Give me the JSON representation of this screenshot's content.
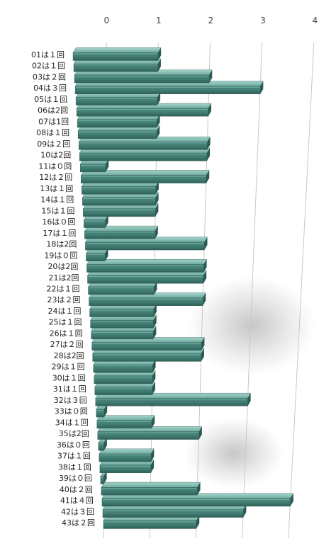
{
  "chart_data": {
    "type": "bar",
    "orientation": "horizontal",
    "style": "3d-perspective",
    "title": "",
    "xlabel": "",
    "ylabel": "",
    "xlim": [
      0,
      4
    ],
    "x_ticks": [
      "0",
      "1",
      "2",
      "3",
      "4"
    ],
    "grid": true,
    "legend": "none",
    "categories": [
      "01は１回",
      "02は１回",
      "03は２回",
      "04は３回",
      "05は１回",
      "06は2回",
      "07は1回",
      "08は１回",
      "09は２回",
      "10は2回",
      "11は０回",
      "12は２回",
      "13は１回",
      "14は１回",
      "15は１回",
      "16は０回",
      "17は１回",
      "18は2回",
      "19は０回",
      "20は2回",
      "21は2回",
      "22は１回",
      "23は２回",
      "24は１回",
      "25は１回",
      "26は１回",
      "27は２回",
      "28は2回",
      "29は１回",
      "30は１回",
      "31は１回",
      "32は３回",
      "33は０回",
      "34は１回",
      "35は2回",
      "36は０回",
      "37は１回",
      "38は１回",
      "39は０回",
      "40は２回",
      "41は４回",
      "42は３回",
      "43は２回"
    ],
    "values": [
      1,
      1,
      2,
      3,
      1,
      2,
      1,
      1,
      2,
      2,
      0,
      2,
      1,
      1,
      1,
      0,
      1,
      2,
      0,
      2,
      2,
      1,
      2,
      1,
      1,
      1,
      2,
      2,
      1,
      1,
      1,
      3,
      0,
      1,
      2,
      0,
      1,
      1,
      0,
      2,
      4,
      3,
      2
    ],
    "colors": {
      "bar_front": "#3f7a70",
      "bar_top": "#7ab3a8",
      "bar_end": "#2b5a52",
      "bar_highlight": "#9fd0c6"
    }
  }
}
